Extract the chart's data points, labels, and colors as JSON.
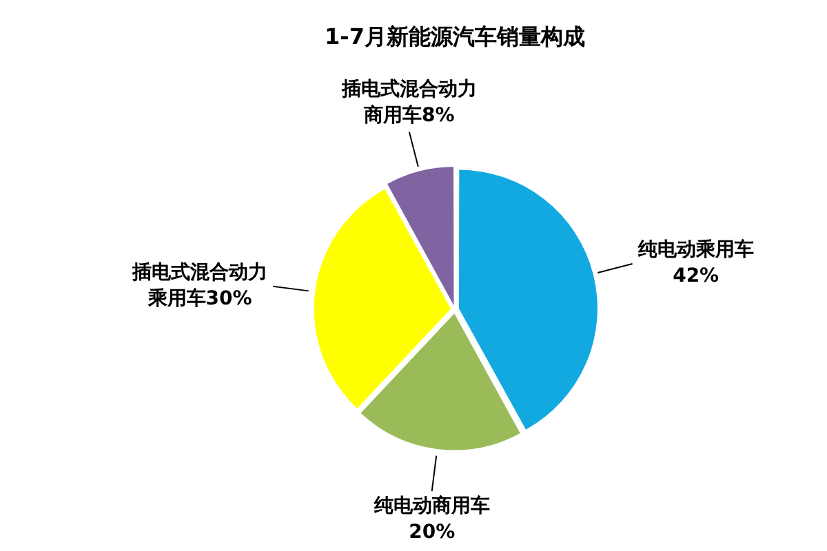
{
  "chart_data": {
    "type": "pie",
    "title": "1-7月新能源汽车销量构成",
    "categories": [
      "纯电动乘用车",
      "纯电动商用车",
      "插电式混合动力乘用车",
      "插电式混合动力商用车"
    ],
    "values": [
      42,
      20,
      30,
      8
    ],
    "colors": [
      "#12a9e1",
      "#9bbb59",
      "#ffff00",
      "#8064a2"
    ],
    "value_labels": [
      "42%",
      "20%",
      "30%",
      "8%"
    ]
  }
}
